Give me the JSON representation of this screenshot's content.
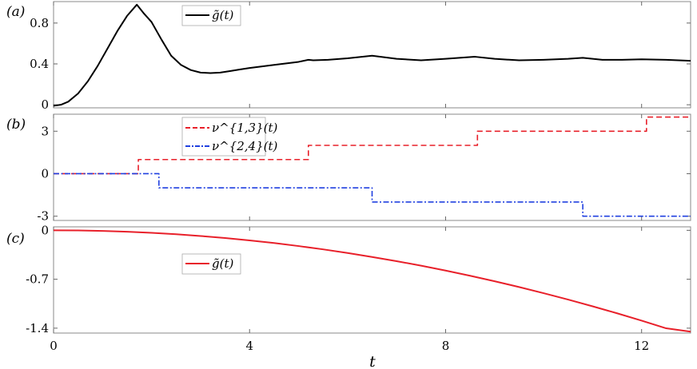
{
  "figure": {
    "xlabel": "t",
    "x_ticks": [
      0,
      4,
      8,
      12
    ],
    "x_tick_labels": [
      "0",
      "4",
      "8",
      "12"
    ],
    "xlim": [
      0,
      13
    ]
  },
  "chart_data": [
    {
      "panel": "(a)",
      "type": "line",
      "ylim": [
        -0.03,
        1.01
      ],
      "y_ticks": [
        0,
        0.4,
        0.8
      ],
      "y_tick_labels": [
        "0",
        "0.4",
        "0.8"
      ],
      "legend": {
        "placement": "top-center",
        "entries": [
          "g̃(t)"
        ]
      },
      "series": [
        {
          "name": "g̃(t)",
          "color": "#000000",
          "style": "solid",
          "x": [
            0,
            0.15,
            0.3,
            0.5,
            0.7,
            0.9,
            1.1,
            1.3,
            1.5,
            1.7,
            1.85,
            2.0,
            2.2,
            2.4,
            2.6,
            2.8,
            3.0,
            3.2,
            3.4,
            3.6,
            3.8,
            4.0,
            4.5,
            5.0,
            5.2,
            5.3,
            5.6,
            6.0,
            6.5,
            7.0,
            7.5,
            8.0,
            8.6,
            9.0,
            9.5,
            10.0,
            10.5,
            10.8,
            11.2,
            11.6,
            12.0,
            12.5,
            13.0
          ],
          "y": [
            -0.01,
            0.0,
            0.03,
            0.11,
            0.23,
            0.38,
            0.55,
            0.72,
            0.87,
            0.98,
            0.89,
            0.81,
            0.64,
            0.48,
            0.39,
            0.34,
            0.315,
            0.31,
            0.315,
            0.33,
            0.345,
            0.36,
            0.39,
            0.42,
            0.44,
            0.435,
            0.44,
            0.455,
            0.48,
            0.45,
            0.435,
            0.45,
            0.47,
            0.45,
            0.435,
            0.44,
            0.45,
            0.46,
            0.44,
            0.44,
            0.445,
            0.44,
            0.43
          ]
        }
      ]
    },
    {
      "panel": "(b)",
      "type": "line",
      "ylim": [
        -3.3,
        4.2
      ],
      "y_ticks": [
        -3,
        0,
        3
      ],
      "y_tick_labels": [
        "-3",
        "0",
        "3"
      ],
      "legend": {
        "placement": "top-center",
        "entries": [
          "ν^{1,3}(t)",
          "ν^{2,4}(t)"
        ]
      },
      "series": [
        {
          "name": "ν^{1,3}(t)",
          "color": "#e8202a",
          "style": "dashed",
          "x": [
            0,
            1.73,
            1.73,
            5.2,
            5.2,
            8.65,
            8.65,
            12.1,
            12.1,
            13.0
          ],
          "y": [
            0,
            0,
            1,
            1,
            2,
            2,
            3,
            3,
            4,
            4
          ]
        },
        {
          "name": "ν^{2,4}(t)",
          "color": "#2040e0",
          "style": "dashdot",
          "x": [
            0,
            2.15,
            2.15,
            6.5,
            6.5,
            10.8,
            10.8,
            13.0
          ],
          "y": [
            0,
            0,
            -1,
            -1,
            -2,
            -2,
            -3,
            -3
          ]
        }
      ]
    },
    {
      "panel": "(c)",
      "type": "line",
      "ylim": [
        -1.47,
        0.05
      ],
      "y_ticks": [
        0,
        -0.7,
        -1.4
      ],
      "y_tick_labels": [
        "0",
        "-0.7",
        "-1.4"
      ],
      "legend": {
        "placement": "center-left",
        "entries": [
          "g̃(t)"
        ]
      },
      "series": [
        {
          "name": "g̃(t)",
          "color": "#e8202a",
          "style": "solid",
          "x": [
            0,
            0.5,
            1,
            1.5,
            2,
            2.5,
            3,
            3.5,
            4,
            4.5,
            5,
            5.5,
            6,
            6.5,
            7,
            7.5,
            8,
            8.5,
            9,
            9.5,
            10,
            10.5,
            11,
            11.5,
            12,
            12.5,
            13
          ],
          "y": [
            0,
            -0.002,
            -0.009,
            -0.02,
            -0.036,
            -0.056,
            -0.081,
            -0.11,
            -0.144,
            -0.182,
            -0.225,
            -0.272,
            -0.324,
            -0.381,
            -0.441,
            -0.506,
            -0.576,
            -0.65,
            -0.729,
            -0.811,
            -0.899,
            -0.991,
            -1.087,
            -1.187,
            -1.292,
            -1.402,
            -1.45
          ]
        }
      ]
    }
  ]
}
